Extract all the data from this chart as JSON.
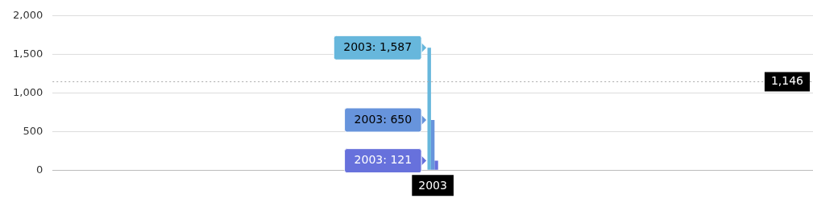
{
  "chart_data": {
    "type": "bar",
    "categories": [
      "2003"
    ],
    "series": [
      {
        "color": "#67b7dc",
        "values": [
          1587
        ]
      },
      {
        "color": "#6794dc",
        "values": [
          650
        ]
      },
      {
        "color": "#6771dc",
        "values": [
          121
        ]
      }
    ],
    "ylim": [
      0,
      2000
    ],
    "yticks": [
      {
        "value": 0,
        "label": "0"
      },
      {
        "value": 500,
        "label": "500"
      },
      {
        "value": 1000,
        "label": "1,000"
      },
      {
        "value": 1500,
        "label": "1,500"
      },
      {
        "value": 2000,
        "label": "2,000"
      }
    ],
    "grid": "y",
    "legend": false,
    "annotations": [
      {
        "text": "2003: 1,587",
        "x": "2003",
        "y": 1587
      },
      {
        "text": "2003: 650",
        "x": "2003",
        "y": 650
      },
      {
        "text": "2003: 121",
        "x": "2003",
        "y": 121
      }
    ],
    "ref_lines": [
      {
        "axis": "y",
        "value": 1146,
        "label": "1,146",
        "line_style": "dotted",
        "color": "#aaaaaa"
      }
    ]
  }
}
